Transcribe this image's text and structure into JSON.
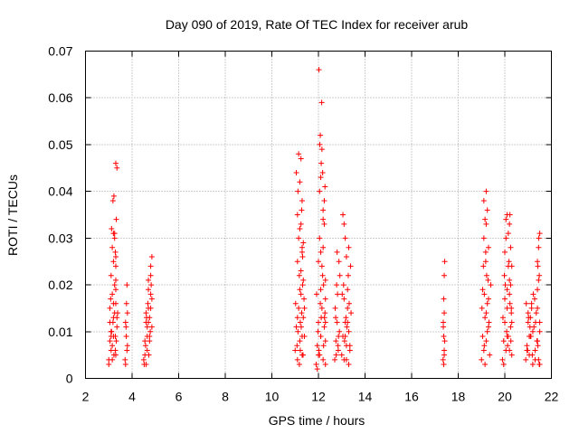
{
  "chart_data": {
    "type": "scatter",
    "title": "Day 090 of 2019, Rate Of TEC Index for receiver arub",
    "xlabel": "GPS time / hours",
    "ylabel": "ROTI / TECUs",
    "xlim": [
      2,
      22
    ],
    "ylim": [
      0,
      0.07
    ],
    "xticks": [
      2,
      4,
      6,
      8,
      10,
      12,
      14,
      16,
      18,
      20,
      22
    ],
    "xtick_labels": [
      "2",
      "4",
      "6",
      "8",
      "10",
      "12",
      "14",
      "16",
      "18",
      "20",
      "22"
    ],
    "yticks": [
      0,
      0.01,
      0.02,
      0.03,
      0.04,
      0.05,
      0.06,
      0.07
    ],
    "ytick_labels": [
      "0",
      "0.01",
      "0.02",
      "0.03",
      "0.04",
      "0.05",
      "0.06",
      "0.07"
    ],
    "grid": true,
    "marker": "+",
    "color": "#ff0000",
    "series": [
      {
        "name": "ROTI",
        "x": [
          3.0,
          3.05,
          3.1,
          3.15,
          3.2,
          3.25,
          3.3,
          3.35,
          3.05,
          3.15,
          3.25,
          3.35,
          3.1,
          3.2,
          3.3,
          3.0,
          3.12,
          3.22,
          3.32,
          3.08,
          3.18,
          3.28,
          3.38,
          3.1,
          3.2,
          3.3,
          3.15,
          3.25,
          3.2,
          3.3,
          3.28,
          3.32,
          3.3,
          3.18,
          3.22,
          3.12,
          3.3,
          3.35,
          3.25,
          3.05,
          3.15,
          3.2,
          3.1,
          3.28,
          3.3,
          3.7,
          3.75,
          3.8,
          3.72,
          3.78,
          3.74,
          3.76,
          3.8,
          3.72,
          3.78,
          4.5,
          4.55,
          4.6,
          4.65,
          4.7,
          4.75,
          4.8,
          4.85,
          4.52,
          4.62,
          4.72,
          4.82,
          4.58,
          4.68,
          4.78,
          4.6,
          4.7,
          4.8,
          4.65,
          4.75,
          4.85,
          4.7,
          4.8,
          4.85,
          4.55,
          4.65,
          4.75,
          4.6,
          4.8,
          4.7,
          11.0,
          11.05,
          11.1,
          11.15,
          11.2,
          11.25,
          11.3,
          11.35,
          11.4,
          11.02,
          11.12,
          11.22,
          11.32,
          11.08,
          11.18,
          11.28,
          11.38,
          11.1,
          11.2,
          11.3,
          11.15,
          11.25,
          11.35,
          11.2,
          11.3,
          11.1,
          11.25,
          11.3,
          11.35,
          11.12,
          11.2,
          11.28,
          11.05,
          11.15,
          11.25,
          11.32,
          11.1,
          11.22,
          11.3,
          11.18,
          11.26,
          11.4,
          11.34,
          11.9,
          11.95,
          12.0,
          12.05,
          12.1,
          12.15,
          12.2,
          12.25,
          12.3,
          11.92,
          12.02,
          12.12,
          12.22,
          11.98,
          12.08,
          12.18,
          12.28,
          12.0,
          12.1,
          12.2,
          12.3,
          12.05,
          12.15,
          12.25,
          12.1,
          12.2,
          12.3,
          12.05,
          12.1,
          12.15,
          12.08,
          12.12,
          12.06,
          12.14,
          12.02,
          12.2,
          12.25,
          12.3,
          12.28,
          12.18,
          11.95,
          12.1,
          12.22,
          12.0,
          12.3,
          12.26,
          12.7,
          12.75,
          12.8,
          12.85,
          12.9,
          12.72,
          12.82,
          12.92,
          12.78,
          12.88,
          12.8,
          12.76,
          12.86,
          12.74,
          12.84,
          13.0,
          13.05,
          13.1,
          13.15,
          13.2,
          13.25,
          13.3,
          13.35,
          13.4,
          13.02,
          13.12,
          13.22,
          13.32,
          13.08,
          13.18,
          13.28,
          13.38,
          13.1,
          13.2,
          13.3,
          13.15,
          13.25,
          13.05,
          13.1,
          13.15,
          13.2,
          13.3,
          13.25,
          13.35,
          17.35,
          17.38,
          17.4,
          17.42,
          17.36,
          17.4,
          17.38,
          17.42,
          17.4,
          17.38,
          17.4,
          17.36,
          19.0,
          19.05,
          19.1,
          19.15,
          19.2,
          19.25,
          19.3,
          19.35,
          19.4,
          19.02,
          19.12,
          19.22,
          19.32,
          19.08,
          19.18,
          19.28,
          19.1,
          19.2,
          19.3,
          19.15,
          19.25,
          19.2,
          19.05,
          19.1,
          19.15,
          19.12,
          19.2,
          19.25,
          19.3,
          19.18,
          19.9,
          19.95,
          20.0,
          20.05,
          20.1,
          20.15,
          20.2,
          20.25,
          20.3,
          19.92,
          20.02,
          20.12,
          20.22,
          19.98,
          20.08,
          20.18,
          20.28,
          20.0,
          20.1,
          20.2,
          20.3,
          20.05,
          20.15,
          20.25,
          20.1,
          20.2,
          19.95,
          20.0,
          20.05,
          20.1,
          20.15,
          20.22,
          20.3,
          20.25,
          20.28,
          20.26,
          20.2,
          20.9,
          20.95,
          21.0,
          21.05,
          21.1,
          21.15,
          21.2,
          21.25,
          21.3,
          21.35,
          21.4,
          21.45,
          21.5,
          20.92,
          21.02,
          21.12,
          21.22,
          21.32,
          21.42,
          20.98,
          21.08,
          21.18,
          21.28,
          21.38,
          21.48,
          21.0,
          21.1,
          21.2,
          21.3,
          21.4,
          21.5,
          20.95,
          21.05,
          21.15,
          21.45,
          21.4,
          21.45,
          21.5,
          21.42,
          21.48,
          21.46,
          21.4,
          21.5
        ],
        "y": [
          0.004,
          0.012,
          0.006,
          0.018,
          0.009,
          0.014,
          0.005,
          0.011,
          0.015,
          0.007,
          0.02,
          0.013,
          0.009,
          0.016,
          0.019,
          0.003,
          0.01,
          0.005,
          0.008,
          0.017,
          0.012,
          0.006,
          0.014,
          0.022,
          0.025,
          0.021,
          0.028,
          0.03,
          0.031,
          0.024,
          0.027,
          0.034,
          0.026,
          0.038,
          0.039,
          0.032,
          0.046,
          0.045,
          0.031,
          0.008,
          0.004,
          0.013,
          0.01,
          0.009,
          0.016,
          0.004,
          0.009,
          0.014,
          0.012,
          0.006,
          0.011,
          0.016,
          0.007,
          0.003,
          0.02,
          0.004,
          0.008,
          0.012,
          0.006,
          0.015,
          0.009,
          0.018,
          0.011,
          0.003,
          0.013,
          0.005,
          0.02,
          0.007,
          0.016,
          0.01,
          0.014,
          0.019,
          0.022,
          0.009,
          0.013,
          0.017,
          0.021,
          0.024,
          0.026,
          0.005,
          0.011,
          0.008,
          0.003,
          0.015,
          0.012,
          0.006,
          0.011,
          0.004,
          0.015,
          0.008,
          0.018,
          0.005,
          0.013,
          0.009,
          0.016,
          0.01,
          0.012,
          0.02,
          0.007,
          0.022,
          0.014,
          0.017,
          0.025,
          0.019,
          0.027,
          0.03,
          0.023,
          0.021,
          0.032,
          0.028,
          0.035,
          0.033,
          0.038,
          0.029,
          0.04,
          0.042,
          0.036,
          0.044,
          0.048,
          0.047,
          0.026,
          0.013,
          0.006,
          0.009,
          0.003,
          0.011,
          0.015,
          0.005,
          0.003,
          0.007,
          0.012,
          0.005,
          0.009,
          0.015,
          0.004,
          0.011,
          0.008,
          0.018,
          0.006,
          0.013,
          0.02,
          0.01,
          0.016,
          0.022,
          0.014,
          0.025,
          0.019,
          0.028,
          0.012,
          0.03,
          0.024,
          0.033,
          0.027,
          0.036,
          0.017,
          0.04,
          0.043,
          0.049,
          0.052,
          0.046,
          0.05,
          0.059,
          0.066,
          0.034,
          0.038,
          0.021,
          0.041,
          0.044,
          0.002,
          0.009,
          0.007,
          0.005,
          0.003,
          0.013,
          0.004,
          0.008,
          0.012,
          0.006,
          0.01,
          0.015,
          0.018,
          0.022,
          0.02,
          0.025,
          0.027,
          0.005,
          0.009,
          0.013,
          0.007,
          0.005,
          0.009,
          0.004,
          0.012,
          0.007,
          0.015,
          0.01,
          0.006,
          0.014,
          0.018,
          0.008,
          0.011,
          0.016,
          0.02,
          0.013,
          0.022,
          0.024,
          0.017,
          0.026,
          0.028,
          0.03,
          0.019,
          0.035,
          0.033,
          0.009,
          0.004,
          0.003,
          0.012,
          0.007,
          0.004,
          0.003,
          0.006,
          0.008,
          0.012,
          0.014,
          0.017,
          0.025,
          0.022,
          0.009,
          0.005,
          0.011,
          0.004,
          0.009,
          0.006,
          0.013,
          0.008,
          0.016,
          0.011,
          0.005,
          0.02,
          0.015,
          0.018,
          0.022,
          0.012,
          0.024,
          0.027,
          0.021,
          0.03,
          0.033,
          0.028,
          0.034,
          0.036,
          0.04,
          0.019,
          0.038,
          0.003,
          0.007,
          0.014,
          0.01,
          0.017,
          0.025,
          0.004,
          0.008,
          0.012,
          0.006,
          0.015,
          0.009,
          0.018,
          0.011,
          0.005,
          0.013,
          0.02,
          0.007,
          0.016,
          0.022,
          0.01,
          0.025,
          0.014,
          0.027,
          0.019,
          0.021,
          0.012,
          0.03,
          0.024,
          0.028,
          0.035,
          0.033,
          0.003,
          0.017,
          0.034,
          0.009,
          0.031,
          0.035,
          0.024,
          0.02,
          0.015,
          0.008,
          0.006,
          0.004,
          0.007,
          0.012,
          0.005,
          0.009,
          0.015,
          0.003,
          0.011,
          0.006,
          0.014,
          0.008,
          0.004,
          0.01,
          0.016,
          0.013,
          0.009,
          0.018,
          0.012,
          0.007,
          0.006,
          0.011,
          0.005,
          0.017,
          0.008,
          0.003,
          0.014,
          0.013,
          0.01,
          0.004,
          0.015,
          0.012,
          0.006,
          0.009,
          0.016,
          0.021,
          0.025,
          0.028,
          0.031,
          0.024,
          0.022,
          0.03,
          0.019,
          0.003
        ]
      }
    ]
  }
}
